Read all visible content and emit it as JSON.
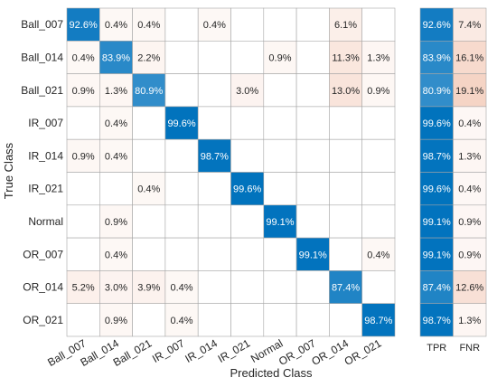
{
  "chart_data": {
    "type": "heatmap",
    "title": "",
    "xlabel": "Predicted Class",
    "ylabel": "True Class",
    "classes": [
      "Ball_007",
      "Ball_014",
      "Ball_021",
      "IR_007",
      "IR_014",
      "IR_021",
      "Normal",
      "OR_007",
      "OR_014",
      "OR_021"
    ],
    "matrix": [
      [
        92.6,
        0.4,
        0.4,
        null,
        0.4,
        null,
        null,
        null,
        6.1,
        null
      ],
      [
        0.4,
        83.9,
        2.2,
        null,
        null,
        null,
        0.9,
        null,
        11.3,
        1.3
      ],
      [
        0.9,
        1.3,
        80.9,
        null,
        null,
        3.0,
        null,
        null,
        13.0,
        0.9
      ],
      [
        null,
        0.4,
        null,
        99.6,
        null,
        null,
        null,
        null,
        null,
        null
      ],
      [
        0.9,
        0.4,
        null,
        null,
        98.7,
        null,
        null,
        null,
        null,
        null
      ],
      [
        null,
        null,
        0.4,
        null,
        null,
        99.6,
        null,
        null,
        null,
        null
      ],
      [
        null,
        0.9,
        null,
        null,
        null,
        null,
        99.1,
        null,
        null,
        null
      ],
      [
        null,
        0.4,
        null,
        null,
        null,
        null,
        null,
        99.1,
        null,
        0.4
      ],
      [
        5.2,
        3.0,
        3.9,
        0.4,
        null,
        null,
        null,
        null,
        87.4,
        null
      ],
      [
        null,
        0.9,
        null,
        0.4,
        null,
        null,
        null,
        null,
        null,
        98.7
      ]
    ],
    "summary_columns": [
      "TPR",
      "FNR"
    ],
    "tpr": [
      92.6,
      83.9,
      80.9,
      99.6,
      98.7,
      99.6,
      99.1,
      99.1,
      87.4,
      98.7
    ],
    "fnr": [
      7.4,
      16.1,
      19.1,
      0.4,
      1.3,
      0.4,
      0.9,
      0.9,
      12.6,
      1.3
    ],
    "value_suffix": "%",
    "colors": {
      "diagonal": "#0072bd",
      "off_diagonal": "#d95319",
      "text_dark": "#262626",
      "text_light": "#ffffff",
      "grid": "#a6a6a6"
    }
  }
}
